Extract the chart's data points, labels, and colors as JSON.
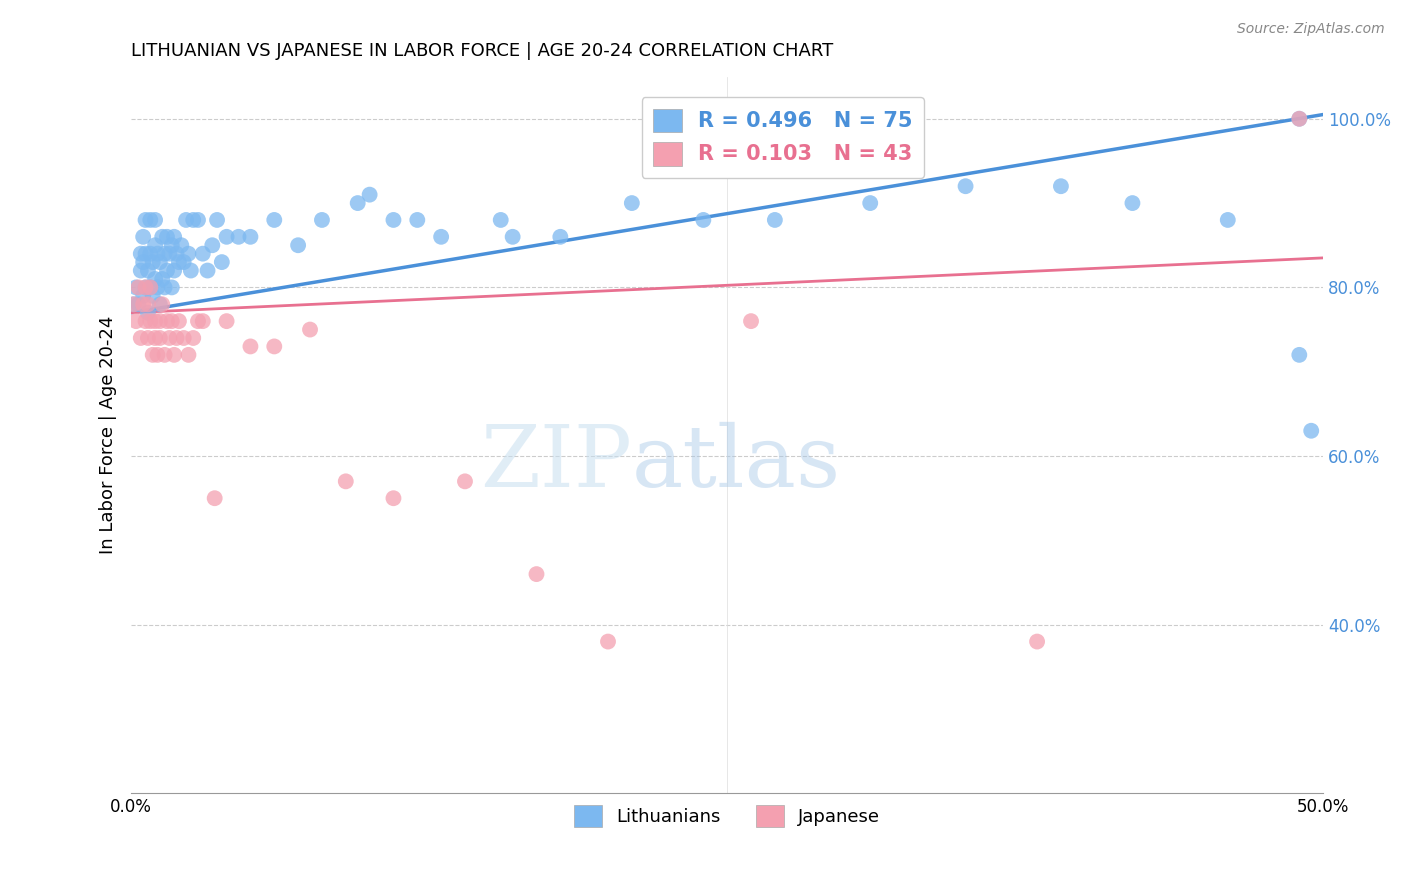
{
  "title": "LITHUANIAN VS JAPANESE IN LABOR FORCE | AGE 20-24 CORRELATION CHART",
  "source": "Source: ZipAtlas.com",
  "ylabel": "In Labor Force | Age 20-24",
  "xlabel": "",
  "xlim": [
    0.0,
    0.5
  ],
  "ylim": [
    0.2,
    1.05
  ],
  "xticks": [
    0.0,
    0.05,
    0.1,
    0.15,
    0.2,
    0.25,
    0.3,
    0.35,
    0.4,
    0.45,
    0.5
  ],
  "yticks": [
    0.4,
    0.6,
    0.8,
    1.0
  ],
  "ytick_labels": [
    "40.0%",
    "60.0%",
    "80.0%",
    "100.0%"
  ],
  "xtick_labels": [
    "0.0%",
    "",
    "",
    "",
    "",
    "",
    "",
    "",
    "",
    "",
    "50.0%"
  ],
  "blue_R": 0.496,
  "blue_N": 75,
  "pink_R": 0.103,
  "pink_N": 43,
  "blue_color": "#7cb8f0",
  "pink_color": "#f4a0b0",
  "blue_line_color": "#4a90d9",
  "pink_line_color": "#e87090",
  "watermark_zip": "ZIP",
  "watermark_atlas": "atlas",
  "legend_label_blue": "Lithuanians",
  "legend_label_pink": "Japanese",
  "blue_line_x": [
    0.0,
    0.5
  ],
  "blue_line_y": [
    0.77,
    1.005
  ],
  "pink_line_x": [
    0.0,
    0.5
  ],
  "pink_line_y": [
    0.77,
    0.835
  ],
  "blue_points_x": [
    0.001,
    0.002,
    0.003,
    0.004,
    0.004,
    0.005,
    0.005,
    0.005,
    0.006,
    0.006,
    0.006,
    0.007,
    0.007,
    0.008,
    0.008,
    0.008,
    0.009,
    0.009,
    0.01,
    0.01,
    0.01,
    0.011,
    0.011,
    0.012,
    0.012,
    0.013,
    0.013,
    0.014,
    0.014,
    0.015,
    0.015,
    0.016,
    0.017,
    0.017,
    0.018,
    0.018,
    0.019,
    0.02,
    0.021,
    0.022,
    0.023,
    0.024,
    0.025,
    0.026,
    0.028,
    0.03,
    0.032,
    0.034,
    0.036,
    0.038,
    0.04,
    0.045,
    0.05,
    0.06,
    0.07,
    0.08,
    0.095,
    0.11,
    0.13,
    0.155,
    0.18,
    0.21,
    0.24,
    0.27,
    0.31,
    0.35,
    0.39,
    0.42,
    0.46,
    0.49,
    0.49,
    0.495,
    0.1,
    0.12,
    0.16
  ],
  "blue_points_y": [
    0.78,
    0.8,
    0.78,
    0.82,
    0.84,
    0.79,
    0.83,
    0.86,
    0.8,
    0.84,
    0.88,
    0.77,
    0.82,
    0.8,
    0.84,
    0.88,
    0.79,
    0.83,
    0.81,
    0.85,
    0.88,
    0.8,
    0.84,
    0.78,
    0.83,
    0.81,
    0.86,
    0.8,
    0.84,
    0.82,
    0.86,
    0.84,
    0.8,
    0.85,
    0.82,
    0.86,
    0.84,
    0.83,
    0.85,
    0.83,
    0.88,
    0.84,
    0.82,
    0.88,
    0.88,
    0.84,
    0.82,
    0.85,
    0.88,
    0.83,
    0.86,
    0.86,
    0.86,
    0.88,
    0.85,
    0.88,
    0.9,
    0.88,
    0.86,
    0.88,
    0.86,
    0.9,
    0.88,
    0.88,
    0.9,
    0.92,
    0.92,
    0.9,
    0.88,
    1.0,
    0.72,
    0.63,
    0.91,
    0.88,
    0.86
  ],
  "pink_points_x": [
    0.001,
    0.002,
    0.003,
    0.004,
    0.005,
    0.006,
    0.006,
    0.007,
    0.007,
    0.008,
    0.008,
    0.009,
    0.01,
    0.01,
    0.011,
    0.012,
    0.012,
    0.013,
    0.014,
    0.015,
    0.016,
    0.017,
    0.018,
    0.019,
    0.02,
    0.022,
    0.024,
    0.026,
    0.028,
    0.03,
    0.035,
    0.04,
    0.05,
    0.06,
    0.075,
    0.09,
    0.11,
    0.14,
    0.17,
    0.2,
    0.26,
    0.38,
    0.49
  ],
  "pink_points_y": [
    0.78,
    0.76,
    0.8,
    0.74,
    0.78,
    0.76,
    0.8,
    0.74,
    0.78,
    0.76,
    0.8,
    0.72,
    0.76,
    0.74,
    0.72,
    0.76,
    0.74,
    0.78,
    0.72,
    0.76,
    0.74,
    0.76,
    0.72,
    0.74,
    0.76,
    0.74,
    0.72,
    0.74,
    0.76,
    0.76,
    0.55,
    0.76,
    0.73,
    0.73,
    0.75,
    0.57,
    0.55,
    0.57,
    0.46,
    0.38,
    0.76,
    0.38,
    1.0
  ]
}
